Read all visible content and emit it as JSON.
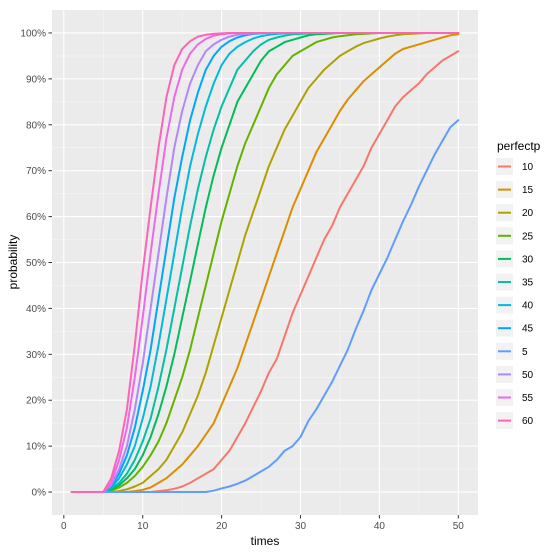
{
  "chart_data": {
    "type": "line",
    "xlabel": "times",
    "ylabel": "probability",
    "xlim": [
      -1.5,
      52.5
    ],
    "ylim": [
      -0.05,
      1.05
    ],
    "x_ticks": [
      0,
      10,
      20,
      30,
      40,
      50
    ],
    "x_tick_labels": [
      "0",
      "10",
      "20",
      "30",
      "40",
      "50"
    ],
    "y_ticks": [
      0,
      0.1,
      0.2,
      0.3,
      0.4,
      0.5,
      0.6,
      0.7,
      0.8,
      0.9,
      1.0
    ],
    "y_tick_labels": [
      "0%",
      "10%",
      "20%",
      "30%",
      "40%",
      "50%",
      "60%",
      "70%",
      "80%",
      "90%",
      "100%"
    ],
    "grid": true,
    "legend_title": "perfectp",
    "legend_position": "right",
    "panel_color": "#ebebeb",
    "x": [
      1,
      2,
      3,
      4,
      5,
      6,
      7,
      8,
      9,
      10,
      11,
      12,
      13,
      14,
      15,
      16,
      17,
      18,
      19,
      20,
      21,
      22,
      23,
      24,
      25,
      26,
      27,
      28,
      29,
      30,
      31,
      32,
      33,
      34,
      35,
      36,
      37,
      38,
      39,
      40,
      41,
      42,
      43,
      44,
      45,
      46,
      47,
      48,
      49,
      50
    ],
    "series": [
      {
        "name": "10",
        "color": "#F8766D",
        "values": [
          0,
          0,
          0,
          0,
          0,
          0,
          0,
          0,
          0,
          0,
          0,
          0.002,
          0.004,
          0.007,
          0.012,
          0.02,
          0.03,
          0.04,
          0.05,
          0.07,
          0.09,
          0.12,
          0.15,
          0.185,
          0.22,
          0.26,
          0.29,
          0.34,
          0.39,
          0.43,
          0.47,
          0.51,
          0.55,
          0.58,
          0.62,
          0.65,
          0.68,
          0.71,
          0.75,
          0.78,
          0.81,
          0.84,
          0.86,
          0.875,
          0.89,
          0.91,
          0.925,
          0.94,
          0.95,
          0.96
        ]
      },
      {
        "name": "15",
        "color": "#DB8E00",
        "values": [
          0,
          0,
          0,
          0,
          0,
          0,
          0,
          0,
          0.002,
          0.005,
          0.01,
          0.02,
          0.03,
          0.045,
          0.06,
          0.08,
          0.1,
          0.125,
          0.15,
          0.19,
          0.23,
          0.27,
          0.32,
          0.37,
          0.42,
          0.47,
          0.52,
          0.57,
          0.62,
          0.66,
          0.7,
          0.74,
          0.77,
          0.8,
          0.83,
          0.855,
          0.875,
          0.895,
          0.91,
          0.925,
          0.94,
          0.955,
          0.965,
          0.97,
          0.975,
          0.98,
          0.985,
          0.99,
          0.995,
          0.997
        ]
      },
      {
        "name": "20",
        "color": "#AEA200",
        "values": [
          0,
          0,
          0,
          0,
          0,
          0,
          0.002,
          0.006,
          0.012,
          0.02,
          0.035,
          0.05,
          0.07,
          0.1,
          0.13,
          0.17,
          0.21,
          0.26,
          0.32,
          0.38,
          0.44,
          0.5,
          0.56,
          0.61,
          0.66,
          0.71,
          0.75,
          0.79,
          0.82,
          0.85,
          0.88,
          0.9,
          0.92,
          0.935,
          0.95,
          0.96,
          0.97,
          0.978,
          0.983,
          0.988,
          0.992,
          0.995,
          0.997,
          0.998,
          0.999,
          1,
          1,
          1,
          1,
          1
        ]
      },
      {
        "name": "25",
        "color": "#64B200",
        "values": [
          0,
          0,
          0,
          0,
          0,
          0.003,
          0.01,
          0.02,
          0.035,
          0.055,
          0.08,
          0.11,
          0.15,
          0.2,
          0.25,
          0.31,
          0.38,
          0.45,
          0.52,
          0.59,
          0.65,
          0.71,
          0.76,
          0.8,
          0.84,
          0.88,
          0.91,
          0.93,
          0.95,
          0.96,
          0.97,
          0.98,
          0.985,
          0.99,
          0.993,
          0.995,
          0.997,
          0.998,
          0.999,
          1,
          1,
          1,
          1,
          1,
          1,
          1,
          1,
          1,
          1,
          1
        ]
      },
      {
        "name": "30",
        "color": "#00BD5C",
        "values": [
          0,
          0,
          0,
          0,
          0,
          0.005,
          0.015,
          0.03,
          0.05,
          0.08,
          0.12,
          0.17,
          0.23,
          0.3,
          0.38,
          0.46,
          0.54,
          0.62,
          0.69,
          0.75,
          0.8,
          0.85,
          0.88,
          0.91,
          0.94,
          0.96,
          0.97,
          0.98,
          0.985,
          0.99,
          0.995,
          0.997,
          0.998,
          0.999,
          1,
          1,
          1,
          1,
          1,
          1,
          1,
          1,
          1,
          1,
          1,
          1,
          1,
          1,
          1,
          1
        ]
      },
      {
        "name": "35",
        "color": "#00C1A7",
        "values": [
          0,
          0,
          0,
          0,
          0,
          0.008,
          0.02,
          0.04,
          0.07,
          0.11,
          0.16,
          0.23,
          0.31,
          0.4,
          0.49,
          0.58,
          0.66,
          0.73,
          0.79,
          0.84,
          0.88,
          0.92,
          0.94,
          0.96,
          0.975,
          0.985,
          0.99,
          0.994,
          0.997,
          0.998,
          0.999,
          1,
          1,
          1,
          1,
          1,
          1,
          1,
          1,
          1,
          1,
          1,
          1,
          1,
          1,
          1,
          1,
          1,
          1,
          1
        ]
      },
      {
        "name": "40",
        "color": "#00BADE",
        "values": [
          0,
          0,
          0,
          0,
          0,
          0.01,
          0.03,
          0.06,
          0.1,
          0.16,
          0.23,
          0.32,
          0.42,
          0.52,
          0.62,
          0.71,
          0.78,
          0.84,
          0.89,
          0.93,
          0.955,
          0.97,
          0.98,
          0.988,
          0.993,
          0.996,
          0.998,
          0.999,
          1,
          1,
          1,
          1,
          1,
          1,
          1,
          1,
          1,
          1,
          1,
          1,
          1,
          1,
          1,
          1,
          1,
          1,
          1,
          1,
          1,
          1
        ]
      },
      {
        "name": "45",
        "color": "#00A6FF",
        "values": [
          0,
          0,
          0,
          0,
          0,
          0.012,
          0.04,
          0.08,
          0.14,
          0.22,
          0.31,
          0.42,
          0.53,
          0.64,
          0.73,
          0.81,
          0.87,
          0.92,
          0.95,
          0.97,
          0.982,
          0.99,
          0.995,
          0.998,
          0.999,
          1,
          1,
          1,
          1,
          1,
          1,
          1,
          1,
          1,
          1,
          1,
          1,
          1,
          1,
          1,
          1,
          1,
          1,
          1,
          1,
          1,
          1,
          1,
          1,
          1
        ]
      },
      {
        "name": "5",
        "color": "#619CFF",
        "values": [
          0,
          0,
          0,
          0,
          0,
          0,
          0,
          0,
          0,
          0,
          0,
          0,
          0,
          0,
          0,
          0,
          0,
          0,
          0.003,
          0.008,
          0.012,
          0.018,
          0.025,
          0.035,
          0.045,
          0.055,
          0.07,
          0.09,
          0.1,
          0.12,
          0.155,
          0.18,
          0.21,
          0.24,
          0.275,
          0.31,
          0.355,
          0.395,
          0.44,
          0.475,
          0.51,
          0.55,
          0.59,
          0.625,
          0.665,
          0.7,
          0.735,
          0.765,
          0.795,
          0.81
        ]
      },
      {
        "name": "50",
        "color": "#B385FF",
        "values": [
          0,
          0,
          0,
          0,
          0,
          0.015,
          0.05,
          0.1,
          0.18,
          0.28,
          0.4,
          0.52,
          0.64,
          0.75,
          0.83,
          0.89,
          0.93,
          0.96,
          0.975,
          0.985,
          0.992,
          0.996,
          0.998,
          0.999,
          1,
          1,
          1,
          1,
          1,
          1,
          1,
          1,
          1,
          1,
          1,
          1,
          1,
          1,
          1,
          1,
          1,
          1,
          1,
          1,
          1,
          1,
          1,
          1,
          1,
          1
        ]
      },
      {
        "name": "55",
        "color": "#EF67EB",
        "values": [
          0,
          0,
          0,
          0,
          0,
          0.02,
          0.07,
          0.14,
          0.25,
          0.38,
          0.52,
          0.65,
          0.77,
          0.86,
          0.92,
          0.955,
          0.975,
          0.987,
          0.994,
          0.997,
          0.999,
          1,
          1,
          1,
          1,
          1,
          1,
          1,
          1,
          1,
          1,
          1,
          1,
          1,
          1,
          1,
          1,
          1,
          1,
          1,
          1,
          1,
          1,
          1,
          1,
          1,
          1,
          1,
          1,
          1
        ]
      },
      {
        "name": "60",
        "color": "#FF63B6",
        "values": [
          0,
          0,
          0,
          0,
          0,
          0.03,
          0.09,
          0.18,
          0.32,
          0.48,
          0.62,
          0.75,
          0.86,
          0.93,
          0.965,
          0.982,
          0.992,
          0.996,
          0.998,
          0.999,
          1,
          1,
          1,
          1,
          1,
          1,
          1,
          1,
          1,
          1,
          1,
          1,
          1,
          1,
          1,
          1,
          1,
          1,
          1,
          1,
          1,
          1,
          1,
          1,
          1,
          1,
          1,
          1,
          1,
          1
        ]
      }
    ]
  }
}
